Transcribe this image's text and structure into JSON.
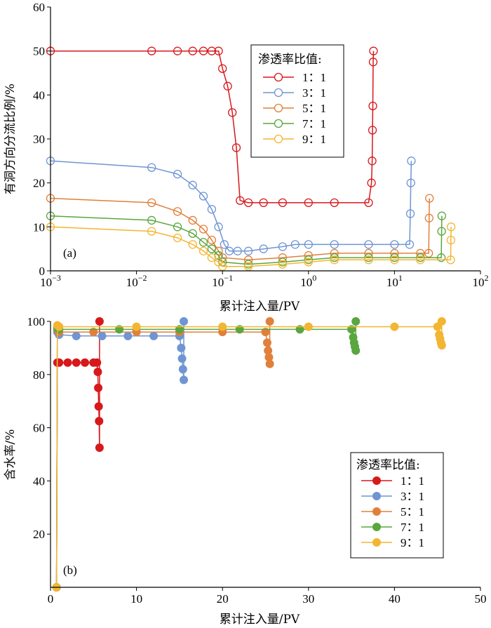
{
  "chart_data": [
    {
      "panel": "(a)",
      "type": "line",
      "xscale": "log",
      "xlabel": "累计注入量/PV",
      "ylabel": "有洞方向分流比例/%",
      "xlim": [
        0.001,
        100
      ],
      "ylim": [
        0,
        60
      ],
      "xticks": [
        "10",
        "10",
        "10",
        "10",
        "10",
        "10"
      ],
      "xtick_exponents": [
        "−3",
        "−2",
        "−1",
        "0",
        "1",
        "2"
      ],
      "yticks": [
        "0",
        "10",
        "20",
        "30",
        "40",
        "50",
        "60"
      ],
      "legend_title": "渗透率比值:",
      "legend_position": "top-center",
      "marker": "open-circle",
      "series": [
        {
          "name": "1：1",
          "color": "#d7191c",
          "x": [
            0.001,
            0.015,
            0.03,
            0.045,
            0.06,
            0.075,
            0.09,
            0.1,
            0.115,
            0.13,
            0.145,
            0.16,
            0.2,
            0.3,
            0.5,
            1,
            2,
            5,
            5.4,
            5.5,
            5.55,
            5.6,
            5.65,
            5.7
          ],
          "y": [
            50,
            50,
            50,
            50,
            50,
            50,
            50,
            46,
            42,
            36,
            28,
            16,
            15.5,
            15.5,
            15.5,
            15.5,
            15.5,
            15.5,
            20,
            25,
            32,
            37.5,
            47.5,
            50
          ]
        },
        {
          "name": "3：1",
          "color": "#6f95d3",
          "x": [
            0.001,
            0.015,
            0.03,
            0.045,
            0.06,
            0.075,
            0.09,
            0.105,
            0.12,
            0.15,
            0.2,
            0.3,
            0.5,
            0.7,
            1,
            2,
            5,
            10,
            15,
            15.3,
            15.5,
            15.7
          ],
          "y": [
            25,
            23.5,
            22,
            19.5,
            17,
            14,
            10,
            6,
            4.5,
            4.5,
            4.5,
            5,
            5.5,
            6,
            6,
            6,
            6,
            6,
            6,
            13,
            20,
            25
          ]
        },
        {
          "name": "5：1",
          "color": "#e0803a",
          "x": [
            0.001,
            0.015,
            0.03,
            0.045,
            0.06,
            0.075,
            0.09,
            0.1,
            0.2,
            0.5,
            1,
            2,
            5,
            10,
            20,
            25,
            25.3,
            25.5
          ],
          "y": [
            16.5,
            15.5,
            13.5,
            11.5,
            9.5,
            7,
            4.5,
            3,
            2.5,
            3,
            3.5,
            4,
            4,
            4,
            4,
            4,
            12,
            16.5
          ]
        },
        {
          "name": "7：1",
          "color": "#5aa63f",
          "x": [
            0.001,
            0.015,
            0.03,
            0.045,
            0.06,
            0.075,
            0.09,
            0.1,
            0.2,
            0.5,
            1,
            2,
            5,
            10,
            20,
            35,
            35.3,
            35.5
          ],
          "y": [
            12.5,
            11.5,
            10,
            8.5,
            6.5,
            5,
            3.5,
            2,
            1.5,
            2,
            2.5,
            3,
            3,
            3,
            3,
            3,
            9,
            12.5
          ]
        },
        {
          "name": "9：1",
          "color": "#f2b632",
          "x": [
            0.001,
            0.015,
            0.03,
            0.045,
            0.06,
            0.075,
            0.09,
            0.1,
            0.2,
            0.5,
            1,
            2,
            5,
            10,
            20,
            45,
            45.3,
            45.5
          ],
          "y": [
            10,
            9,
            7.5,
            6,
            4.5,
            3,
            2,
            1,
            1,
            1.5,
            2,
            2.5,
            2.5,
            2.5,
            2.5,
            2.5,
            7,
            10
          ]
        }
      ]
    },
    {
      "panel": "(b)",
      "type": "line",
      "xscale": "linear",
      "xlabel": "累计注入量/PV",
      "ylabel": "含水率/%",
      "xlim": [
        0,
        50
      ],
      "ylim": [
        0,
        100
      ],
      "xticks": [
        "0",
        "10",
        "20",
        "30",
        "40",
        "50"
      ],
      "yticks": [
        "20",
        "40",
        "60",
        "80",
        "100"
      ],
      "legend_title": "渗透率比值:",
      "legend_position": "bottom-right",
      "marker": "filled-circle",
      "series": [
        {
          "name": "1：1",
          "color": "#d7191c",
          "x": [
            0.7,
            0.8,
            1,
            2,
            3,
            4,
            5,
            5.4,
            5.5,
            5.55,
            5.6,
            5.65,
            5.7,
            5.7
          ],
          "y": [
            0,
            84.5,
            84.5,
            84.5,
            84.5,
            84.5,
            84.5,
            84.5,
            81,
            75,
            68,
            62.5,
            52.5,
            100
          ]
        },
        {
          "name": "3：1",
          "color": "#6f95d3",
          "x": [
            0.7,
            0.8,
            1,
            3,
            6,
            9,
            12,
            15,
            15.2,
            15.3,
            15.4,
            15.5,
            15.5
          ],
          "y": [
            0,
            96,
            95,
            94.5,
            94.5,
            94.5,
            94.5,
            94.5,
            90,
            86,
            82,
            78,
            100
          ]
        },
        {
          "name": "5：1",
          "color": "#e0803a",
          "x": [
            0.7,
            0.8,
            1,
            5,
            10,
            15,
            20,
            25,
            25.2,
            25.3,
            25.4,
            25.5,
            25.5
          ],
          "y": [
            0,
            97,
            96,
            96,
            96,
            96,
            96,
            96,
            92,
            89,
            86.5,
            84,
            100
          ]
        },
        {
          "name": "7：1",
          "color": "#5aa63f",
          "x": [
            0.7,
            0.8,
            1,
            8,
            15,
            22,
            29,
            35,
            35.2,
            35.3,
            35.4,
            35.5,
            35.5
          ],
          "y": [
            0,
            97.5,
            97,
            97,
            97,
            97,
            97,
            97,
            94,
            92,
            90.5,
            89,
            100
          ]
        },
        {
          "name": "9：1",
          "color": "#f2b632",
          "x": [
            0.7,
            0.8,
            1,
            10,
            20,
            30,
            40,
            45,
            45.2,
            45.3,
            45.4,
            45.5,
            45.5
          ],
          "y": [
            0,
            98.5,
            98,
            98,
            98,
            98,
            98,
            98,
            95,
            93.5,
            92,
            91,
            100
          ]
        }
      ]
    }
  ]
}
